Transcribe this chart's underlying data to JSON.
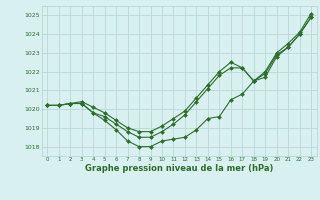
{
  "title": "Graphe pression niveau de la mer (hPa)",
  "bg_color": "#d8f0f0",
  "grid_color": "#b8d8d8",
  "line_color": "#2d6e2d",
  "marker_color": "#2d6e2d",
  "xlim": [
    -0.5,
    23.5
  ],
  "ylim": [
    1017.5,
    1025.5
  ],
  "yticks": [
    1018,
    1019,
    1020,
    1021,
    1022,
    1023,
    1024,
    1025
  ],
  "xticks": [
    0,
    1,
    2,
    3,
    4,
    5,
    6,
    7,
    8,
    9,
    10,
    11,
    12,
    13,
    14,
    15,
    16,
    17,
    18,
    19,
    20,
    21,
    22,
    23
  ],
  "series1_x": [
    0,
    1,
    2,
    3,
    4,
    5,
    6,
    7,
    8,
    9,
    10,
    11,
    12,
    13,
    14,
    15,
    16,
    17,
    18,
    19,
    20,
    21,
    22,
    23
  ],
  "series1_y": [
    1020.2,
    1020.2,
    1020.3,
    1020.3,
    1019.8,
    1019.4,
    1018.9,
    1018.3,
    1018.0,
    1018.0,
    1018.3,
    1018.4,
    1018.5,
    1018.9,
    1019.5,
    1019.6,
    1020.5,
    1020.8,
    1021.5,
    1021.7,
    1022.8,
    1023.3,
    1024.0,
    1024.9
  ],
  "series2_x": [
    0,
    1,
    2,
    3,
    4,
    5,
    6,
    7,
    8,
    9,
    10,
    11,
    12,
    13,
    14,
    15,
    16,
    17,
    18,
    19,
    20,
    21,
    22,
    23
  ],
  "series2_y": [
    1020.2,
    1020.2,
    1020.3,
    1020.3,
    1019.8,
    1019.6,
    1019.2,
    1018.8,
    1018.5,
    1018.5,
    1018.8,
    1019.2,
    1019.7,
    1020.4,
    1021.1,
    1021.8,
    1022.2,
    1022.2,
    1021.5,
    1021.9,
    1022.9,
    1023.3,
    1024.0,
    1024.9
  ],
  "series3_x": [
    0,
    1,
    2,
    3,
    4,
    5,
    6,
    7,
    8,
    9,
    10,
    11,
    12,
    13,
    14,
    15,
    16,
    17,
    18,
    19,
    20,
    21,
    22,
    23
  ],
  "series3_y": [
    1020.2,
    1020.2,
    1020.3,
    1020.4,
    1020.1,
    1019.8,
    1019.4,
    1019.0,
    1018.8,
    1018.8,
    1019.1,
    1019.5,
    1019.9,
    1020.6,
    1021.3,
    1022.0,
    1022.5,
    1022.2,
    1021.5,
    1022.0,
    1023.0,
    1023.5,
    1024.1,
    1025.1
  ]
}
